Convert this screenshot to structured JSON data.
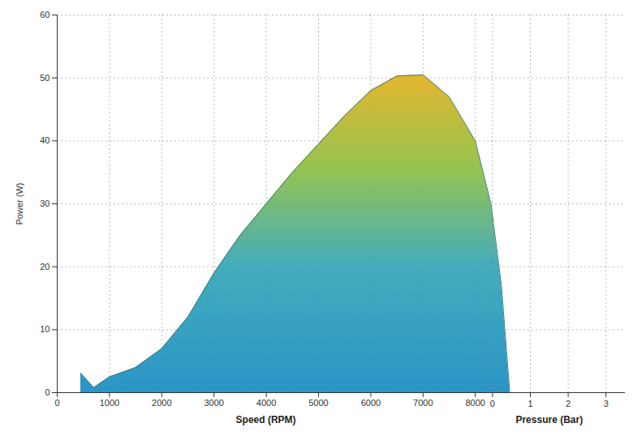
{
  "chart_data": {
    "type": "area",
    "xlabel": "Speed (RPM)",
    "ylabel": "Power (W)",
    "x": [
      450,
      700,
      1000,
      1500,
      2000,
      2500,
      3000,
      3500,
      4000,
      4500,
      5000,
      5500,
      6000,
      6500,
      7000,
      7500,
      8000,
      8300,
      8500,
      8660
    ],
    "values": [
      3.1,
      0.8,
      2.5,
      4,
      7,
      12,
      19,
      25,
      30,
      35,
      39.5,
      44,
      48,
      50.3,
      50.5,
      47,
      40,
      30,
      17,
      0
    ],
    "xlim": [
      0,
      10870
    ],
    "xticks": [
      0,
      1000,
      2000,
      3000,
      4000,
      5000,
      6000,
      7000,
      8000
    ],
    "ylim": [
      0,
      60
    ],
    "yticks": [
      0,
      10,
      20,
      30,
      40,
      50,
      60
    ],
    "pressure_axis": {
      "label": "Pressure (Bar)",
      "lim": [
        0,
        3.5
      ],
      "ticks": [
        0,
        1,
        2,
        3
      ]
    },
    "grid": true
  }
}
